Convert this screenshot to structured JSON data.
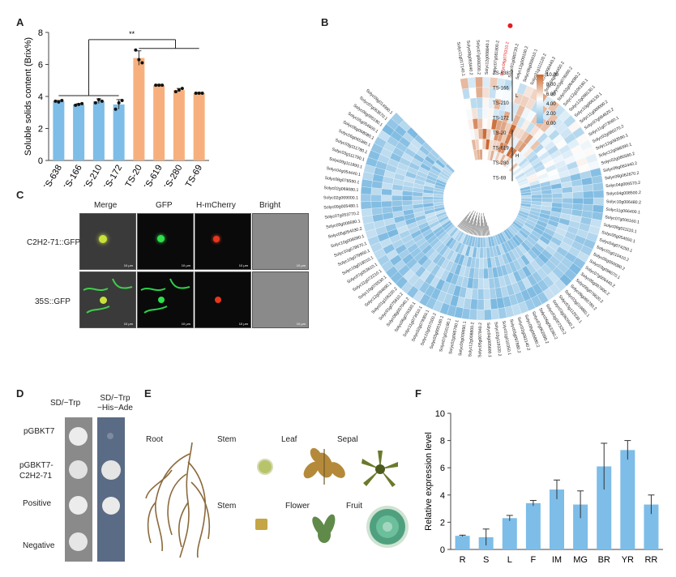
{
  "panels": {
    "a": "A",
    "b": "B",
    "c": "C",
    "d": "D",
    "e": "E",
    "f": "F"
  },
  "panel_a": {
    "significance": "**",
    "chart_data": {
      "type": "bar",
      "categories": [
        "TS-638",
        "TS-166",
        "TS-210",
        "TS-172",
        "TS-20",
        "TS-619",
        "TS-280",
        "TS-69"
      ],
      "values": [
        3.7,
        3.5,
        3.7,
        3.5,
        6.4,
        4.7,
        4.4,
        4.2
      ],
      "errors": [
        0.05,
        0.05,
        0.15,
        0.3,
        0.45,
        0.05,
        0.1,
        0.05
      ],
      "points": [
        [
          3.7,
          3.65,
          3.75
        ],
        [
          3.45,
          3.5,
          3.55
        ],
        [
          3.6,
          3.8,
          3.7
        ],
        [
          3.2,
          3.6,
          3.75
        ],
        [
          6.9,
          6.3,
          6.1
        ],
        [
          4.7,
          4.7,
          4.7
        ],
        [
          4.3,
          4.4,
          4.5
        ],
        [
          4.2,
          4.2,
          4.2
        ]
      ],
      "colors": [
        "#7dbde8",
        "#7dbde8",
        "#7dbde8",
        "#7dbde8",
        "#f7b07d",
        "#f7b07d",
        "#f7b07d",
        "#f7b07d"
      ],
      "ylabel": "Soluble solids content (Brix%)",
      "ylim": [
        0,
        8
      ],
      "yticks": [
        0,
        2,
        4,
        6,
        8
      ]
    }
  },
  "panel_b": {
    "legend_ticks": [
      "10.00",
      "8.00",
      "6.00",
      "4.00",
      "2.00",
      "0.00"
    ],
    "colors": {
      "high": "#c8652d",
      "mid": "#ffffff",
      "low": "#7ab8e0"
    },
    "samples": [
      "TS-638",
      "TS-166",
      "TS-210",
      "TS-172",
      "TS-20",
      "TS-619",
      "TS-280",
      "TS-69"
    ],
    "group_l": "L",
    "group_h": "H",
    "highlight_gene": "Solyc06g075310.2",
    "genes": [
      "Solyc11g017140.1",
      "Solyc08g063440.2",
      "Solyc07g008200.2",
      "Solyc12g008840.1",
      "Solyc07g081800.2",
      "Solyc06g075310.2",
      "Solyc01g080720.2",
      "Solyc12g009100.2",
      "Solyc06g006010.1",
      "Solyc01g111120.2",
      "Solyc01g090440.2",
      "Solyc04g084450.2",
      "Solyc03g078080.2",
      "Solyc02g064080.2",
      "Solyc12g100190.1",
      "Solyc12g098130.1",
      "Solyc10g006130.1",
      "Solyc11g000000.2",
      "Solyc07g064620.2",
      "Solyc11g073060.1",
      "Solyc02g080270.2",
      "Solyc12g093590.1",
      "Solyc12g088390.1",
      "Solyc02g085580.2",
      "Solyc06g063440.2",
      "Solyc06g062670.2",
      "Solyc04g006570.2",
      "Solyc04g008500.2",
      "Solyc10g006480.2",
      "Solyc11g066400.1",
      "Solyc07g006160.1",
      "Solyc09g011110.1",
      "Solyc05g054550.1",
      "Solyc04g074250.1",
      "Solyc01g010410.2",
      "Solyc05g050080.2",
      "Solyc03g096070.1",
      "Solyc07g006440.2",
      "Solyc05g007800.2",
      "Solyc06g076620.2",
      "Solyc09g065780.2",
      "Solyc03g019880.1",
      "Solyc03g112530.1",
      "Solyc03g082640.2",
      "Solyc03g007320.2",
      "Solyc06g063280.2",
      "Solyc07g062090.2",
      "Solyc09g065880.2",
      "Solyc02g082140.2",
      "Solyc03g097880.2",
      "Solyc01g010350.1",
      "Solyc03g119320.2",
      "Solyc04g005600.1",
      "Solyc05g007840.2",
      "Solyc12g008800.2",
      "Solyc05g008690.1",
      "Solyc02g065760.1",
      "Solyc07g016190.1",
      "Solyc03g005160.1",
      "Solyc10g007000.2",
      "Solyc02g079360.1",
      "Solyc11g073610.1",
      "Solyc06g076330.1",
      "Solyc08g007040.2",
      "Solyc01g075810.2",
      "Solyc01g106220.2",
      "Solyc12g094690.1",
      "Solyc10g076530.1",
      "Solyc11g072210.1",
      "Solyc07g053610.1",
      "Solyc10g018010.1",
      "Solyc10g079950.1",
      "Solyc10g078670.1",
      "Solyc10g008090.1",
      "Solyc05g054030.2",
      "Solyc05g009590.1",
      "Solyc07g053770.2",
      "Solyc09g005480.1",
      "Solyc02g069000.1",
      "Solyc02g069080.1",
      "Solyc08g078590.1",
      "Solyc04g054440.1",
      "Solyc09g111890.1",
      "Solyc03g111790.1",
      "Solyc03g111780.1",
      "Solyc06g065380.1",
      "Solyc06g068080.1",
      "Solyc05g054600.1",
      "Solyc06g005190.1",
      "Solyc07g063570.1",
      "Solyc09g014990.1"
    ]
  },
  "panel_c": {
    "columns": [
      "Merge",
      "GFP",
      "H-mCherry",
      "Bright"
    ],
    "rows": [
      "C2H2-71::GFP",
      "35S::GFP"
    ],
    "scale_text": "10 μm"
  },
  "panel_d": {
    "col1": "SD/−Trp",
    "col2_line1": "SD/−Trp",
    "col2_line2": "−His−Ade",
    "rows": [
      "pGBKT7",
      "pGBKT7-\nC2H2-71",
      "Positive",
      "Negative"
    ]
  },
  "panel_e": {
    "labels": [
      "Root",
      "Stem",
      "Leaf",
      "Sepal",
      "Stem",
      "Flower",
      "Fruit"
    ]
  },
  "panel_f": {
    "chart_data": {
      "type": "bar",
      "categories": [
        "R",
        "S",
        "L",
        "F",
        "IM",
        "MG",
        "BR",
        "YR",
        "RR"
      ],
      "values": [
        1.0,
        0.9,
        2.3,
        3.4,
        4.4,
        3.3,
        6.1,
        7.3,
        3.3
      ],
      "errors": [
        0.05,
        0.6,
        0.2,
        0.2,
        0.7,
        1.0,
        1.7,
        0.7,
        0.7
      ],
      "ylabel": "Relative expression level",
      "ylim": [
        0,
        10
      ],
      "yticks": [
        0,
        2,
        4,
        6,
        8,
        10
      ],
      "color": "#7dbde8"
    }
  }
}
